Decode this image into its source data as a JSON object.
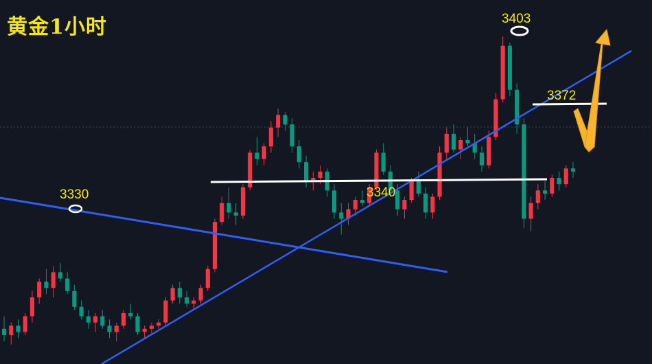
{
  "title": "黄金1小时",
  "colors": {
    "background": "#131722",
    "up": "#f23645",
    "down": "#089981",
    "trendline": "#2f5ff0",
    "level": "#ffffff",
    "label": "#f5e614",
    "arrow": "#f7b52b",
    "marker": "#ffffff"
  },
  "chart_data": {
    "type": "candlestick",
    "title": "黄金1小时",
    "ylim": [
      3301,
      3408
    ],
    "candles_start_index": 0,
    "candles": [
      [
        3310,
        3314,
        3306,
        3308
      ],
      [
        3308,
        3312,
        3305,
        3311
      ],
      [
        3311,
        3313,
        3307,
        3309
      ],
      [
        3309,
        3315,
        3308,
        3314
      ],
      [
        3314,
        3322,
        3312,
        3320
      ],
      [
        3320,
        3326,
        3318,
        3325
      ],
      [
        3325,
        3329,
        3321,
        3323
      ],
      [
        3323,
        3330,
        3320,
        3328
      ],
      [
        3328,
        3331,
        3325,
        3326
      ],
      [
        3326,
        3328,
        3321,
        3322
      ],
      [
        3322,
        3324,
        3316,
        3317
      ],
      [
        3317,
        3319,
        3313,
        3314
      ],
      [
        3314,
        3316,
        3310,
        3312
      ],
      [
        3312,
        3315,
        3309,
        3314
      ],
      [
        3314,
        3316,
        3310,
        3311
      ],
      [
        3311,
        3313,
        3307,
        3309
      ],
      [
        3309,
        3312,
        3306,
        3311
      ],
      [
        3311,
        3316,
        3310,
        3315
      ],
      [
        3315,
        3318,
        3313,
        3314
      ],
      [
        3314,
        3315,
        3308,
        3309
      ],
      [
        3309,
        3311,
        3307,
        3310
      ],
      [
        3310,
        3312,
        3308,
        3311
      ],
      [
        3311,
        3313,
        3310,
        3312
      ],
      [
        3312,
        3320,
        3311,
        3319
      ],
      [
        3319,
        3324,
        3318,
        3323
      ],
      [
        3323,
        3325,
        3318,
        3320
      ],
      [
        3320,
        3322,
        3317,
        3318
      ],
      [
        3318,
        3320,
        3316,
        3319
      ],
      [
        3319,
        3324,
        3318,
        3323
      ],
      [
        3323,
        3330,
        3322,
        3329
      ],
      [
        3329,
        3345,
        3328,
        3344
      ],
      [
        3344,
        3352,
        3343,
        3350
      ],
      [
        3350,
        3355,
        3345,
        3347
      ],
      [
        3347,
        3350,
        3343,
        3346
      ],
      [
        3346,
        3356,
        3345,
        3355
      ],
      [
        3355,
        3367,
        3354,
        3366
      ],
      [
        3366,
        3371,
        3362,
        3364
      ],
      [
        3364,
        3369,
        3362,
        3368
      ],
      [
        3368,
        3376,
        3366,
        3374
      ],
      [
        3374,
        3380,
        3371,
        3378
      ],
      [
        3378,
        3379,
        3373,
        3375
      ],
      [
        3375,
        3377,
        3366,
        3368
      ],
      [
        3368,
        3370,
        3361,
        3363
      ],
      [
        3363,
        3365,
        3355,
        3357
      ],
      [
        3357,
        3360,
        3354,
        3358
      ],
      [
        3358,
        3362,
        3356,
        3360
      ],
      [
        3360,
        3361,
        3352,
        3354
      ],
      [
        3354,
        3356,
        3345,
        3347
      ],
      [
        3347,
        3350,
        3340,
        3345
      ],
      [
        3345,
        3350,
        3343,
        3348
      ],
      [
        3348,
        3352,
        3346,
        3351
      ],
      [
        3351,
        3354,
        3349,
        3350
      ],
      [
        3350,
        3356,
        3349,
        3355
      ],
      [
        3355,
        3367,
        3354,
        3366
      ],
      [
        3366,
        3369,
        3359,
        3360
      ],
      [
        3360,
        3362,
        3352,
        3354
      ],
      [
        3354,
        3356,
        3346,
        3348
      ],
      [
        3348,
        3352,
        3345,
        3351
      ],
      [
        3351,
        3358,
        3350,
        3357
      ],
      [
        3357,
        3360,
        3352,
        3353
      ],
      [
        3353,
        3355,
        3345,
        3347
      ],
      [
        3347,
        3353,
        3345,
        3352
      ],
      [
        3352,
        3368,
        3351,
        3366
      ],
      [
        3366,
        3374,
        3364,
        3372
      ],
      [
        3372,
        3375,
        3366,
        3367
      ],
      [
        3367,
        3371,
        3364,
        3370
      ],
      [
        3370,
        3374,
        3368,
        3369
      ],
      [
        3369,
        3372,
        3364,
        3366
      ],
      [
        3366,
        3368,
        3360,
        3362
      ],
      [
        3362,
        3373,
        3361,
        3371
      ],
      [
        3371,
        3385,
        3370,
        3383
      ],
      [
        3383,
        3403,
        3382,
        3400
      ],
      [
        3400,
        3401,
        3384,
        3386
      ],
      [
        3386,
        3388,
        3372,
        3375
      ],
      [
        3375,
        3377,
        3342,
        3345
      ],
      [
        3345,
        3352,
        3341,
        3350
      ],
      [
        3350,
        3356,
        3348,
        3354
      ],
      [
        3354,
        3357,
        3351,
        3353
      ],
      [
        3353,
        3359,
        3352,
        3358
      ],
      [
        3358,
        3360,
        3354,
        3356
      ],
      [
        3356,
        3362,
        3355,
        3361
      ],
      [
        3361,
        3363,
        3358,
        3360
      ]
    ],
    "annotations": {
      "peak_left": "3330",
      "peak_top": "3403",
      "support": "3340",
      "resistance": "3372"
    }
  }
}
